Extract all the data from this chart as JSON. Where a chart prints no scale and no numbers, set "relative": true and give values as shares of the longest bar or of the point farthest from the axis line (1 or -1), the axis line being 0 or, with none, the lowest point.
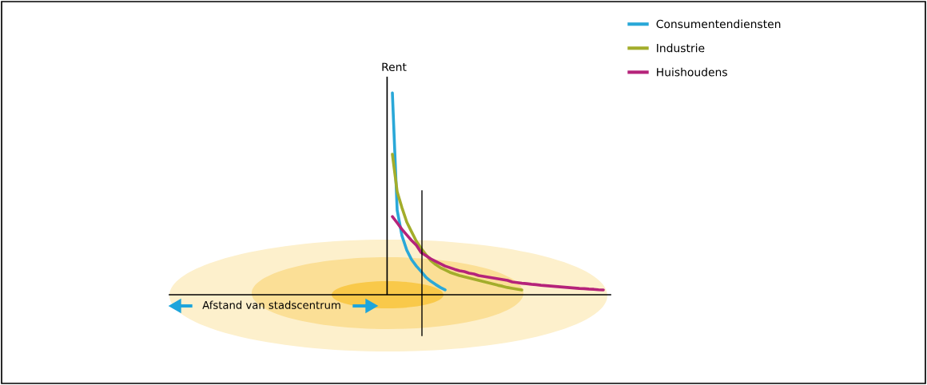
{
  "chart_data": {
    "type": "line",
    "relative": true,
    "xlabel": "Afstand van stadscentrum",
    "ylabel": "Rent",
    "tick_labels": false,
    "grid": false,
    "legend": "top right",
    "marker": "none",
    "line_style": "solid",
    "categories": [
      null,
      null,
      null,
      null,
      null,
      null,
      null,
      null,
      null,
      null,
      null,
      null,
      null,
      null,
      null,
      null,
      null,
      null,
      null,
      null,
      null,
      null,
      null,
      null,
      null,
      null,
      null,
      null,
      null,
      null,
      null,
      null,
      null,
      null,
      null,
      null,
      null,
      null,
      null,
      null,
      null,
      null,
      null,
      null,
      null,
      null,
      null,
      null,
      null,
      null,
      null,
      null,
      null,
      null,
      null,
      null,
      null,
      null,
      null,
      null,
      null,
      null,
      null,
      null,
      null,
      null,
      null,
      null,
      null,
      null,
      null,
      null,
      null,
      null,
      null,
      null,
      null,
      null,
      null,
      null,
      null,
      null,
      null,
      null,
      null,
      null,
      null,
      null,
      null,
      null,
      null,
      null
    ],
    "series": [
      {
        "name": "Consumentendiensten",
        "color": "#2aa8d8",
        "values": [
          null,
          null,
          null,
          null,
          null,
          null,
          null,
          null,
          null,
          null,
          null,
          null,
          null,
          null,
          null,
          null,
          null,
          null,
          null,
          null,
          null,
          null,
          null,
          null,
          null,
          null,
          null,
          null,
          null,
          null,
          null,
          null,
          null,
          null,
          null,
          null,
          null,
          null,
          null,
          null,
          null,
          null,
          null,
          null,
          null,
          null,
          1.0,
          0.419,
          0.292,
          0.221,
          0.174,
          0.142,
          0.115,
          0.087,
          0.067,
          0.051,
          0.036,
          0.024,
          null,
          null,
          null,
          null,
          null,
          null,
          null,
          null,
          null,
          null,
          null,
          null,
          null,
          null,
          null,
          null,
          null,
          null,
          null,
          null,
          null,
          null,
          null,
          null,
          null,
          null,
          null,
          null,
          null,
          null,
          null,
          null,
          null,
          null
        ]
      },
      {
        "name": "Industrie",
        "color": "#a3ad2b",
        "values": [
          null,
          null,
          null,
          null,
          null,
          null,
          null,
          null,
          null,
          null,
          null,
          null,
          null,
          null,
          null,
          null,
          null,
          null,
          null,
          null,
          null,
          null,
          null,
          null,
          null,
          null,
          null,
          null,
          null,
          null,
          null,
          null,
          null,
          null,
          null,
          null,
          null,
          null,
          null,
          null,
          null,
          null,
          null,
          null,
          null,
          null,
          0.696,
          0.51,
          0.431,
          0.36,
          0.312,
          0.265,
          0.229,
          0.198,
          0.17,
          0.15,
          0.134,
          0.123,
          0.111,
          0.103,
          0.095,
          0.089,
          0.083,
          0.077,
          0.071,
          0.065,
          0.059,
          0.053,
          0.047,
          0.042,
          0.036,
          0.032,
          0.028,
          0.024,
          null,
          null,
          null,
          null,
          null,
          null,
          null,
          null,
          null,
          null,
          null,
          null,
          null,
          null,
          null,
          null,
          null,
          null
        ]
      },
      {
        "name": "Huishoudens",
        "color": "#b5237a",
        "values": [
          null,
          null,
          null,
          null,
          null,
          null,
          null,
          null,
          null,
          null,
          null,
          null,
          null,
          null,
          null,
          null,
          null,
          null,
          null,
          null,
          null,
          null,
          null,
          null,
          null,
          null,
          null,
          null,
          null,
          null,
          null,
          null,
          null,
          null,
          null,
          null,
          null,
          null,
          null,
          null,
          null,
          null,
          null,
          null,
          null,
          null,
          0.387,
          0.356,
          0.324,
          0.296,
          0.269,
          0.245,
          0.209,
          0.194,
          0.178,
          0.166,
          0.154,
          0.142,
          0.134,
          0.126,
          0.119,
          0.115,
          0.107,
          0.103,
          0.095,
          0.091,
          0.087,
          0.083,
          0.079,
          0.075,
          0.071,
          0.063,
          0.06,
          0.057,
          0.055,
          0.052,
          0.05,
          0.047,
          0.045,
          0.043,
          0.041,
          0.039,
          0.037,
          0.035,
          0.033,
          0.031,
          0.03,
          0.028,
          0.027,
          0.025,
          0.024,
          null
        ]
      }
    ]
  }
}
